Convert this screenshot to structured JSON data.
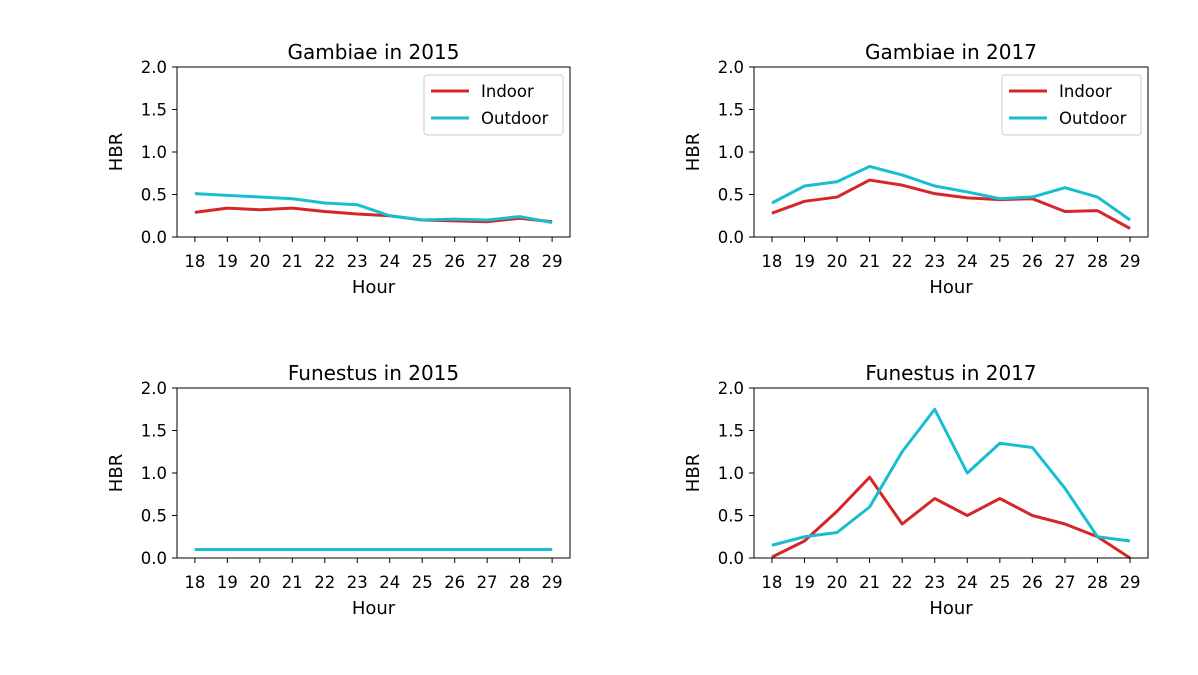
{
  "chart_data": [
    {
      "type": "line",
      "title": "Gambiae in 2015",
      "xlabel": "Hour",
      "ylabel": "HBR",
      "x": [
        18,
        19,
        20,
        21,
        22,
        23,
        24,
        25,
        26,
        27,
        28,
        29
      ],
      "xticks": [
        "18",
        "19",
        "20",
        "21",
        "22",
        "23",
        "24",
        "25",
        "26",
        "27",
        "28",
        "29"
      ],
      "ylim": [
        0,
        2
      ],
      "yticks": [
        "0.0",
        "0.5",
        "1.0",
        "1.5",
        "2.0"
      ],
      "legend": "top-right",
      "grid": false,
      "series": [
        {
          "name": "Indoor",
          "color": "#d62728",
          "values": [
            0.29,
            0.34,
            0.32,
            0.34,
            0.3,
            0.27,
            0.25,
            0.2,
            0.19,
            0.18,
            0.22,
            0.18
          ]
        },
        {
          "name": "Outdoor",
          "color": "#17becf",
          "values": [
            0.51,
            0.49,
            0.47,
            0.45,
            0.4,
            0.38,
            0.25,
            0.2,
            0.21,
            0.2,
            0.24,
            0.17
          ]
        }
      ]
    },
    {
      "type": "line",
      "title": "Gambiae in 2017",
      "xlabel": "Hour",
      "ylabel": "HBR",
      "x": [
        18,
        19,
        20,
        21,
        22,
        23,
        24,
        25,
        26,
        27,
        28,
        29
      ],
      "xticks": [
        "18",
        "19",
        "20",
        "21",
        "22",
        "23",
        "24",
        "25",
        "26",
        "27",
        "28",
        "29"
      ],
      "ylim": [
        0,
        2
      ],
      "yticks": [
        "0.0",
        "0.5",
        "1.0",
        "1.5",
        "2.0"
      ],
      "legend": "top-right",
      "grid": false,
      "series": [
        {
          "name": "Indoor",
          "color": "#d62728",
          "values": [
            0.28,
            0.42,
            0.47,
            0.67,
            0.61,
            0.51,
            0.46,
            0.44,
            0.45,
            0.3,
            0.31,
            0.1
          ]
        },
        {
          "name": "Outdoor",
          "color": "#17becf",
          "values": [
            0.4,
            0.6,
            0.65,
            0.83,
            0.73,
            0.6,
            0.53,
            0.45,
            0.47,
            0.58,
            0.47,
            0.2
          ]
        }
      ]
    },
    {
      "type": "line",
      "title": "Funestus in 2015",
      "xlabel": "Hour",
      "ylabel": "HBR",
      "x": [
        18,
        19,
        20,
        21,
        22,
        23,
        24,
        25,
        26,
        27,
        28,
        29
      ],
      "xticks": [
        "18",
        "19",
        "20",
        "21",
        "22",
        "23",
        "24",
        "25",
        "26",
        "27",
        "28",
        "29"
      ],
      "ylim": [
        0,
        2
      ],
      "yticks": [
        "0.0",
        "0.5",
        "1.0",
        "1.5",
        "2.0"
      ],
      "grid": false,
      "series": [
        {
          "color": "#d62728",
          "values": [
            0.1,
            0.1,
            0.1,
            0.1,
            0.1,
            0.1,
            0.1,
            0.1,
            0.1,
            0.1,
            0.1,
            0.1
          ]
        },
        {
          "color": "#17becf",
          "values": [
            0.1,
            0.1,
            0.1,
            0.1,
            0.1,
            0.1,
            0.1,
            0.1,
            0.1,
            0.1,
            0.1,
            0.1
          ]
        }
      ]
    },
    {
      "type": "line",
      "title": "Funestus in 2017",
      "xlabel": "Hour",
      "ylabel": "HBR",
      "x": [
        18,
        19,
        20,
        21,
        22,
        23,
        24,
        25,
        26,
        27,
        28,
        29
      ],
      "xticks": [
        "18",
        "19",
        "20",
        "21",
        "22",
        "23",
        "24",
        "25",
        "26",
        "27",
        "28",
        "29"
      ],
      "ylim": [
        0,
        2
      ],
      "yticks": [
        "0.0",
        "0.5",
        "1.0",
        "1.5",
        "2.0"
      ],
      "grid": false,
      "series": [
        {
          "color": "#d62728",
          "values": [
            0.01,
            0.2,
            0.55,
            0.95,
            0.4,
            0.7,
            0.5,
            0.7,
            0.5,
            0.4,
            0.25,
            0.0
          ]
        },
        {
          "color": "#17becf",
          "values": [
            0.15,
            0.25,
            0.3,
            0.6,
            1.25,
            1.75,
            1.0,
            1.35,
            1.3,
            0.82,
            0.25,
            0.2
          ]
        }
      ]
    }
  ]
}
